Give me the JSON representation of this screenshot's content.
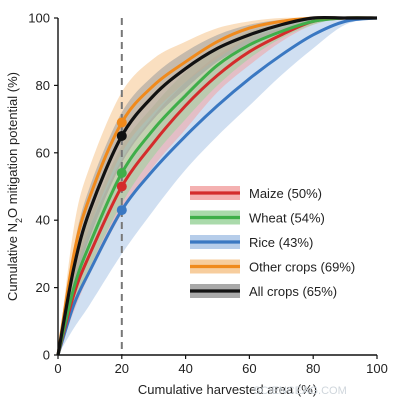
{
  "chart_data": {
    "type": "line",
    "xlabel": "Cumulative harvested area  (%)",
    "ylabel_parts": [
      "Cumulative N",
      "2",
      "O mitigation potential  (%)"
    ],
    "xlim": [
      0,
      100
    ],
    "ylim": [
      0,
      100
    ],
    "x_ticks": [
      "0",
      "20",
      "40",
      "60",
      "80",
      "100"
    ],
    "y_ticks": [
      "0",
      "20",
      "40",
      "60",
      "80",
      "100"
    ],
    "grid": false,
    "reference_line": {
      "x": 20,
      "style": "dashed",
      "color": "#777777"
    },
    "legend_position": "lower-right",
    "series": [
      {
        "name": "Maize (50%)",
        "color": "#d42c2c",
        "band_color": "#f2a3a3",
        "marker_at_x20": 50,
        "x": [
          0,
          5,
          10,
          20,
          30,
          40,
          50,
          60,
          70,
          80,
          90,
          100
        ],
        "y": [
          0,
          18,
          30,
          50,
          63,
          74,
          83,
          90,
          95,
          99,
          100,
          100
        ],
        "lower": [
          0,
          13,
          24,
          42,
          56,
          67,
          78,
          86,
          93,
          98,
          100,
          100
        ],
        "upper": [
          0,
          24,
          38,
          58,
          71,
          81,
          89,
          94,
          97,
          99.5,
          100,
          100
        ]
      },
      {
        "name": "Wheat (54%)",
        "color": "#3fae49",
        "band_color": "#9bd39c",
        "marker_at_x20": 54,
        "x": [
          0,
          5,
          10,
          20,
          30,
          40,
          50,
          60,
          70,
          80,
          90,
          100
        ],
        "y": [
          0,
          20,
          33,
          54,
          67,
          77,
          86,
          92,
          96,
          99,
          100,
          100
        ],
        "lower": [
          0,
          14,
          26,
          45,
          59,
          70,
          80,
          88,
          94,
          98,
          100,
          100
        ],
        "upper": [
          0,
          26,
          41,
          62,
          74,
          84,
          91,
          96,
          98,
          100,
          100,
          100
        ]
      },
      {
        "name": "Rice (43%)",
        "color": "#3a78c2",
        "band_color": "#a9c4e6",
        "marker_at_x20": 43,
        "x": [
          0,
          5,
          10,
          20,
          30,
          40,
          50,
          60,
          70,
          80,
          90,
          100
        ],
        "y": [
          0,
          15,
          25,
          43,
          55,
          65,
          74,
          82,
          89,
          95,
          99,
          100
        ],
        "lower": [
          0,
          8,
          15,
          30,
          43,
          55,
          65,
          74,
          83,
          91,
          98,
          100
        ],
        "upper": [
          0,
          22,
          36,
          55,
          67,
          78,
          86,
          92,
          96,
          99,
          100,
          100
        ]
      },
      {
        "name": "Other crops (69%)",
        "color": "#f08a1c",
        "band_color": "#f6c48c",
        "marker_at_x20": 69,
        "x": [
          0,
          5,
          10,
          20,
          30,
          40,
          50,
          60,
          70,
          80,
          90,
          100
        ],
        "y": [
          0,
          30,
          47,
          69,
          80,
          87,
          93,
          97,
          99,
          100,
          100,
          100
        ],
        "lower": [
          0,
          22,
          38,
          60,
          72,
          81,
          88,
          94,
          98,
          100,
          100,
          100
        ],
        "upper": [
          0,
          38,
          56,
          78,
          88,
          93,
          97,
          99,
          100,
          100,
          100,
          100
        ]
      },
      {
        "name": "All crops (65%)",
        "color": "#111111",
        "band_color": "#9a9a9a",
        "marker_at_x20": 65,
        "x": [
          0,
          5,
          10,
          20,
          30,
          40,
          50,
          60,
          70,
          80,
          90,
          100
        ],
        "y": [
          0,
          26,
          43,
          65,
          77,
          85,
          91,
          95,
          98,
          100,
          100,
          100
        ],
        "lower": [
          0,
          20,
          35,
          57,
          70,
          79,
          87,
          92,
          96,
          99,
          100,
          100
        ],
        "upper": [
          0,
          32,
          50,
          72,
          83,
          90,
          95,
          98,
          99.5,
          100,
          100,
          100
        ]
      }
    ],
    "legend_order": [
      0,
      1,
      2,
      3,
      4
    ]
  },
  "watermark": "SCIENCEAG.COM"
}
